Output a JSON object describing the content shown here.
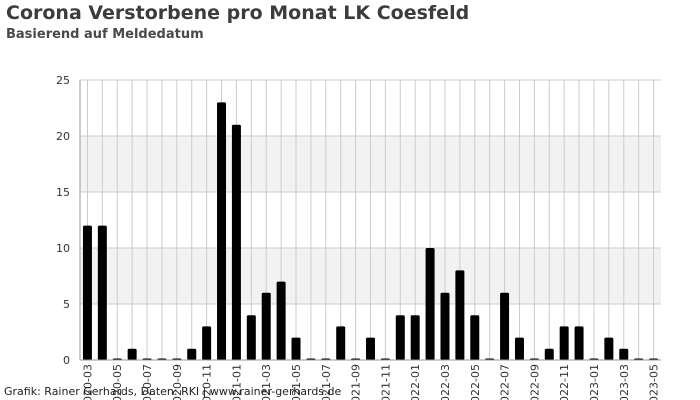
{
  "title": "Corona Verstorbene pro Monat LK Coesfeld",
  "subtitle": "Basierend auf Meldedatum",
  "source": "Grafik: Rainer Gerhards, Daten: RKI | www.rainer-gerhards.de",
  "colors": {
    "bar": "#000000",
    "band": "#f2f2f2",
    "grid": "#cccccc",
    "axis": "#999999"
  },
  "chart_data": {
    "type": "bar",
    "categories": [
      "2020-03",
      "2020-04",
      "2020-05",
      "2020-06",
      "2020-07",
      "2020-08",
      "2020-09",
      "2020-10",
      "2020-11",
      "2020-12",
      "2021-01",
      "2021-02",
      "2021-03",
      "2021-04",
      "2021-05",
      "2021-06",
      "2021-07",
      "2021-08",
      "2021-09",
      "2021-10",
      "2021-11",
      "2021-12",
      "2022-01",
      "2022-02",
      "2022-03",
      "2022-04",
      "2022-05",
      "2022-06",
      "2022-07",
      "2022-08",
      "2022-09",
      "2022-10",
      "2022-11",
      "2022-12",
      "2023-01",
      "2023-02",
      "2023-03",
      "2023-04",
      "2023-05"
    ],
    "x_tick_labels": [
      "2020-03",
      "2020-05",
      "2020-07",
      "2020-09",
      "2020-11",
      "2021-01",
      "2021-03",
      "2021-05",
      "2021-07",
      "2021-09",
      "2021-11",
      "2022-01",
      "2022-03",
      "2022-05",
      "2022-07",
      "2022-09",
      "2022-11",
      "2023-01",
      "2023-03",
      "2023-05"
    ],
    "values": [
      12,
      12,
      0,
      1,
      0,
      0,
      0,
      1,
      3,
      23,
      21,
      4,
      6,
      7,
      2,
      0,
      0,
      3,
      0,
      2,
      0,
      4,
      4,
      10,
      6,
      8,
      4,
      0,
      6,
      2,
      0,
      1,
      3,
      3,
      0,
      2,
      1,
      0,
      0
    ],
    "ylim": [
      0,
      25
    ],
    "y_ticks": [
      0,
      5,
      10,
      15,
      20,
      25
    ],
    "xlabel": "",
    "ylabel": "",
    "grid": true,
    "legend": "none"
  }
}
